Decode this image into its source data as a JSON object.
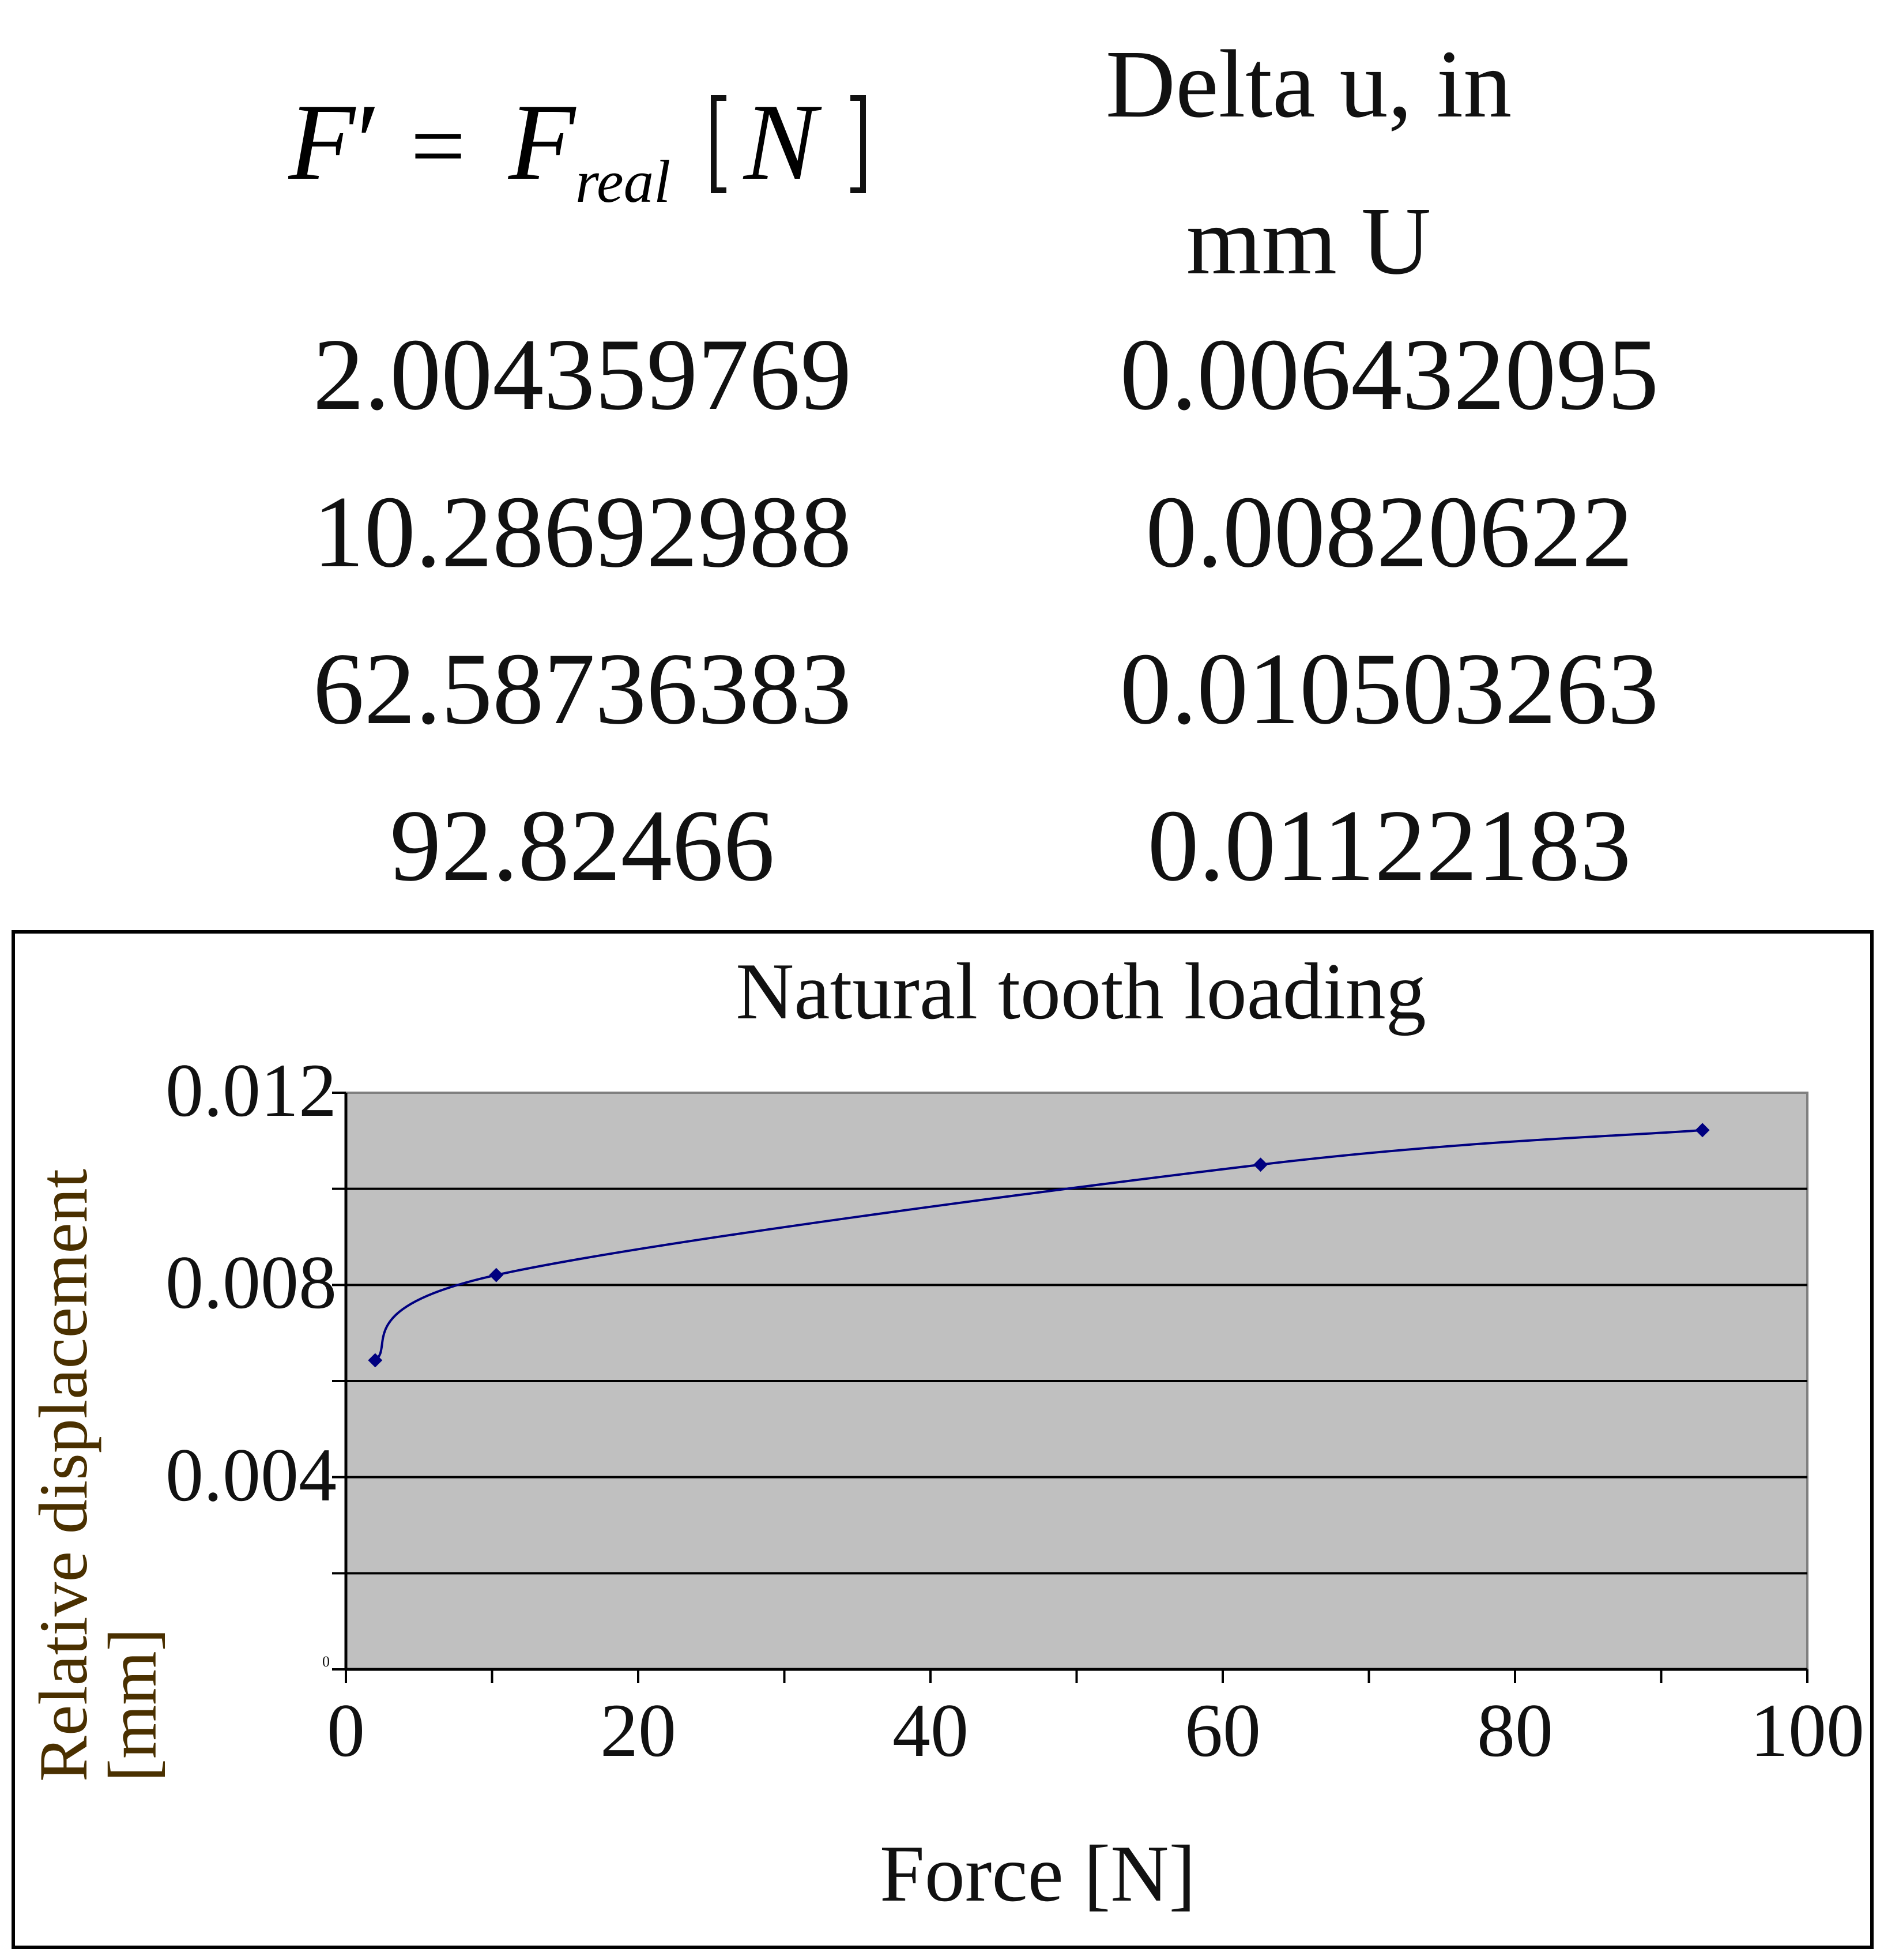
{
  "table": {
    "header_formula": {
      "lhs": "F",
      "prime": "′",
      "eq": "=",
      "rhs": "F",
      "subscript": "real",
      "unit": "N"
    },
    "header_delta_line1": "Delta u, in",
    "header_delta_line2": "mm U",
    "rows": [
      {
        "force": "2.004359769",
        "delta_u": "0.006432095"
      },
      {
        "force": "10.28692988",
        "delta_u": "0.00820622"
      },
      {
        "force": "62.58736383",
        "delta_u": "0.010503263"
      },
      {
        "force": "92.82466",
        "delta_u": "0.01122183"
      }
    ]
  },
  "chart_data": {
    "type": "line",
    "title": "Natural tooth loading",
    "xlabel": "Force [N]",
    "ylabel": "Relative displacement [mm]",
    "xlim": [
      0,
      100
    ],
    "ylim": [
      0,
      0.012
    ],
    "x_tick_labels": [
      "0",
      "20",
      "40",
      "60",
      "80",
      "100"
    ],
    "y_tick_labels": [
      "0",
      "0.004",
      "0.008",
      "0.012"
    ],
    "x": [
      2.004359769,
      10.28692988,
      62.58736383,
      92.82466
    ],
    "series": [
      {
        "values": [
          0.006432095,
          0.00820622,
          0.010503263,
          0.01122183
        ]
      }
    ],
    "smoothed": true,
    "grid": "horizontal",
    "plot_background": "#c0c0c0",
    "line_color": "#000080",
    "label_color": "#4a3000"
  }
}
